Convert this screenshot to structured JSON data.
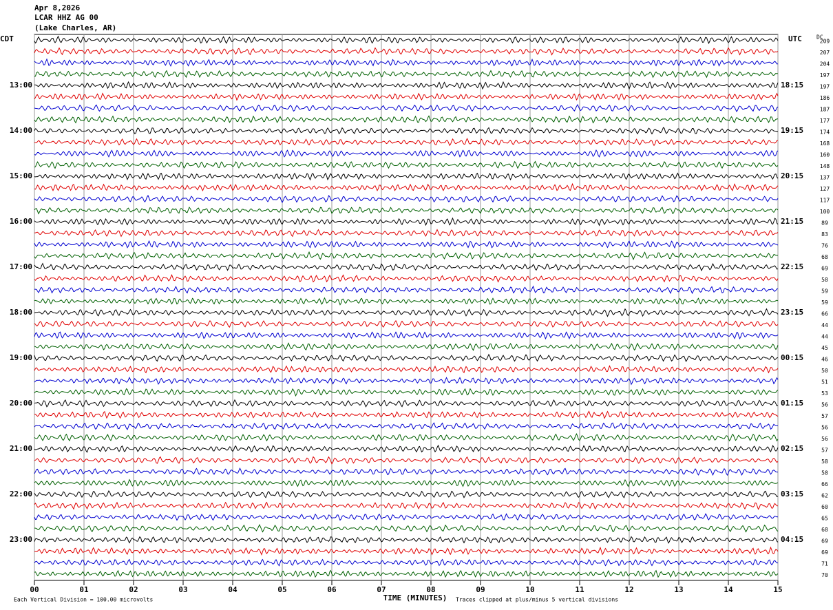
{
  "header": {
    "date": "Apr 8,2026",
    "station": "LCAR HHZ AG 00",
    "location": "(Lake Charles, AR)"
  },
  "chart_data": {
    "type": "helicorder",
    "left_timezone": "CDT",
    "right_timezone": "UTC",
    "dc_label": "DC",
    "left_time_labels": [
      "13:00",
      "14:00",
      "15:00",
      "16:00",
      "17:00",
      "18:00",
      "19:00",
      "20:00",
      "21:00",
      "22:00",
      "23:00"
    ],
    "right_time_labels": [
      "18:15",
      "19:15",
      "20:15",
      "21:15",
      "22:15",
      "23:15",
      "00:15",
      "01:15",
      "02:15",
      "03:15",
      "04:15"
    ],
    "dc_values": [
      209,
      207,
      204,
      197,
      197,
      186,
      187,
      177,
      174,
      168,
      160,
      148,
      137,
      127,
      117,
      100,
      89,
      83,
      76,
      68,
      69,
      58,
      59,
      59,
      66,
      44,
      44,
      45,
      46,
      50,
      51,
      53,
      56,
      57,
      56,
      56,
      57,
      58,
      58,
      66,
      62,
      60,
      65,
      68,
      69,
      69,
      71,
      70
    ],
    "trace_colors": [
      "#000000",
      "#e00000",
      "#0000d0",
      "#006000"
    ],
    "xlim": [
      0,
      15
    ],
    "xticks": [
      {
        "value": 0,
        "label": "00"
      },
      {
        "value": 1,
        "label": "01"
      },
      {
        "value": 2,
        "label": "02"
      },
      {
        "value": 3,
        "label": "03"
      },
      {
        "value": 4,
        "label": "04"
      },
      {
        "value": 5,
        "label": "05"
      },
      {
        "value": 6,
        "label": "06"
      },
      {
        "value": 7,
        "label": "07"
      },
      {
        "value": 8,
        "label": "08"
      },
      {
        "value": 9,
        "label": "09"
      },
      {
        "value": 10,
        "label": "10"
      },
      {
        "value": 11,
        "label": "11"
      },
      {
        "value": 12,
        "label": "12"
      },
      {
        "value": 13,
        "label": "13"
      },
      {
        "value": 14,
        "label": "14"
      },
      {
        "value": 15,
        "label": "15"
      }
    ],
    "xlabel": "TIME (MINUTES)",
    "scale_note": "Each Vertical Division =  100.00 microvolts",
    "clip_note": "Traces clipped at plus/minus 5 vertical divisions"
  }
}
